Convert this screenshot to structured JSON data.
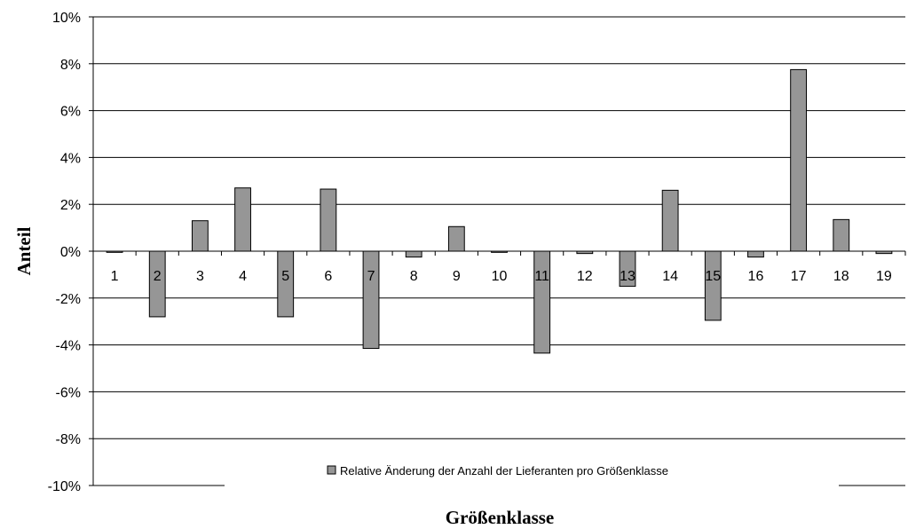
{
  "chart_data": {
    "type": "bar",
    "title": "",
    "xlabel": "Größenklasse",
    "ylabel": "Anteil",
    "ylim": [
      -0.1,
      0.1
    ],
    "yticks": [
      0.1,
      0.08,
      0.06,
      0.04,
      0.02,
      0.0,
      -0.02,
      -0.04,
      -0.06,
      -0.08,
      -0.1
    ],
    "ytick_labels": [
      "10%",
      "8%",
      "6%",
      "4%",
      "2%",
      "0%",
      "-2%",
      "-4%",
      "-6%",
      "-8%",
      "-10%"
    ],
    "grid": true,
    "legend_position": "bottom-center",
    "bar_color": "#969696",
    "categories": [
      "1",
      "2",
      "3",
      "4",
      "5",
      "6",
      "7",
      "8",
      "9",
      "10",
      "11",
      "12",
      "13",
      "14",
      "15",
      "16",
      "17",
      "18",
      "19"
    ],
    "series": [
      {
        "name": "Relative Änderung der Anzahl der Lieferanten pro Größenklasse",
        "values": [
          -0.0005,
          -0.028,
          0.013,
          0.027,
          -0.028,
          0.0265,
          -0.0415,
          -0.0025,
          0.0105,
          -0.0005,
          -0.0435,
          -0.001,
          -0.015,
          0.026,
          -0.0295,
          -0.0025,
          0.0775,
          0.0135,
          -0.001
        ]
      }
    ]
  }
}
